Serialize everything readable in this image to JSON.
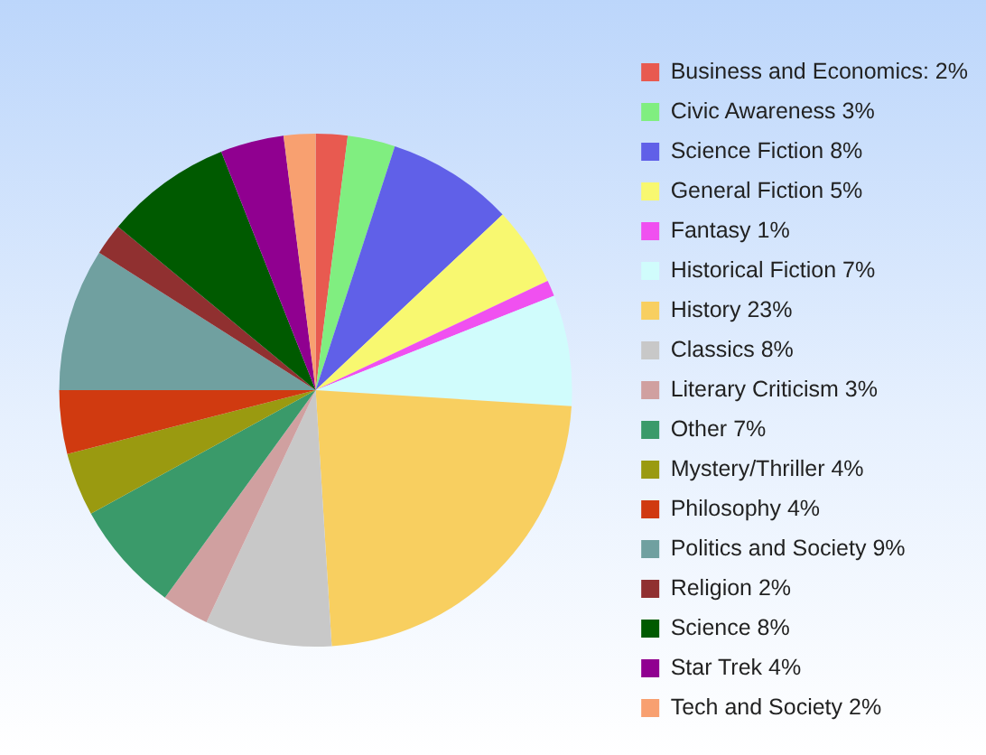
{
  "chart_data": {
    "type": "pie",
    "categories": [
      "Business and Economics: 2%",
      "Civic Awareness 3%",
      "Science Fiction 8%",
      "General Fiction 5%",
      "Fantasy 1%",
      "Historical Fiction 7%",
      "History 23%",
      "Classics 8%",
      "Literary Criticism 3%",
      "Other 7%",
      "Mystery/Thriller 4%",
      "Philosophy 4%",
      "Politics and Society 9%",
      "Religion 2%",
      "Science 8%",
      "Star Trek 4%",
      "Tech and Society 2%"
    ],
    "values": [
      2,
      3,
      8,
      5,
      1,
      7,
      23,
      8,
      3,
      7,
      4,
      4,
      9,
      2,
      8,
      4,
      2
    ],
    "colors": [
      "#e85a50",
      "#80ee80",
      "#6060e8",
      "#f8f870",
      "#f050f0",
      "#d0fcfc",
      "#f8cf60",
      "#c8c8c8",
      "#d0a0a0",
      "#3a9a6a",
      "#9a9a10",
      "#d03a10",
      "#70a0a0",
      "#903030",
      "#005a00",
      "#900090",
      "#f8a070"
    ],
    "legend": "right"
  }
}
